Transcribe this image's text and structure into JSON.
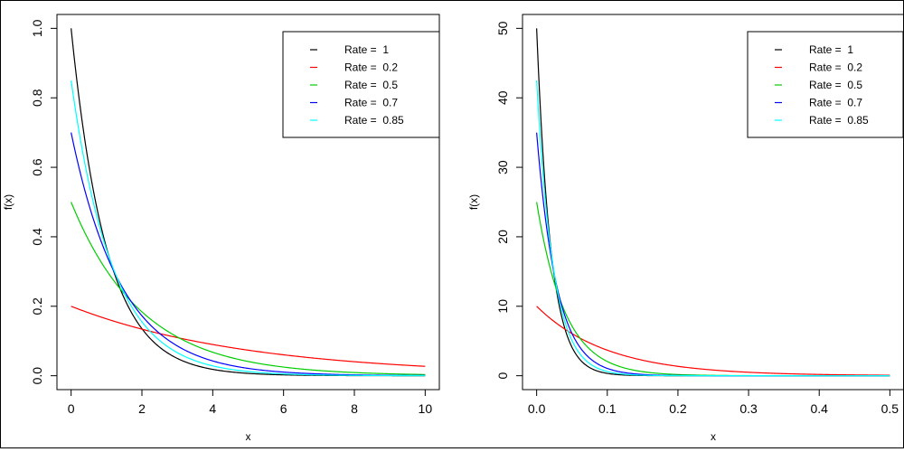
{
  "chart_data": [
    {
      "type": "line",
      "xlabel": "x",
      "ylabel": "f(x)",
      "xlim": [
        0,
        10
      ],
      "ylim": [
        0,
        1.0
      ],
      "x_ticks": [
        0,
        2,
        4,
        6,
        8,
        10
      ],
      "x_tick_labels": [
        "0",
        "2",
        "4",
        "6",
        "8",
        "10"
      ],
      "y_ticks": [
        0,
        0.2,
        0.4,
        0.6,
        0.8,
        1.0
      ],
      "y_tick_labels": [
        "0.0",
        "0.2",
        "0.4",
        "0.6",
        "0.8",
        "1.0"
      ],
      "function": "exponential density f(x) = rate * exp(-rate * x)",
      "x_range": [
        0,
        10
      ],
      "legend_position": "top-right",
      "grid": false,
      "series": [
        {
          "name": "Rate =  1",
          "rate": 1,
          "color": "#000000"
        },
        {
          "name": "Rate =  0.2",
          "rate": 0.2,
          "color": "#ff0000"
        },
        {
          "name": "Rate =  0.5",
          "rate": 0.5,
          "color": "#00cd00"
        },
        {
          "name": "Rate =  0.7",
          "rate": 0.7,
          "color": "#0000ff"
        },
        {
          "name": "Rate =  0.85",
          "rate": 0.85,
          "color": "#00ffff"
        }
      ]
    },
    {
      "type": "line",
      "xlabel": "x",
      "ylabel": "f(x)",
      "xlim": [
        0,
        0.5
      ],
      "ylim": [
        0,
        50
      ],
      "x_ticks": [
        0,
        0.1,
        0.2,
        0.3,
        0.4,
        0.5
      ],
      "x_tick_labels": [
        "0.0",
        "0.1",
        "0.2",
        "0.3",
        "0.4",
        "0.5"
      ],
      "y_ticks": [
        0,
        10,
        20,
        30,
        40,
        50
      ],
      "y_tick_labels": [
        "0",
        "10",
        "20",
        "30",
        "40",
        "50"
      ],
      "function": "exponential density f(x) = 50 * rate * exp(-50 * rate * x)",
      "x_range": [
        0,
        0.5
      ],
      "legend_position": "top-right",
      "grid": false,
      "series": [
        {
          "name": "Rate =  1",
          "rate": 1,
          "color": "#000000"
        },
        {
          "name": "Rate =  0.2",
          "rate": 0.2,
          "color": "#ff0000"
        },
        {
          "name": "Rate =  0.5",
          "rate": 0.5,
          "color": "#00cd00"
        },
        {
          "name": "Rate =  0.7",
          "rate": 0.7,
          "color": "#0000ff"
        },
        {
          "name": "Rate =  0.85",
          "rate": 0.85,
          "color": "#00ffff"
        }
      ]
    }
  ]
}
